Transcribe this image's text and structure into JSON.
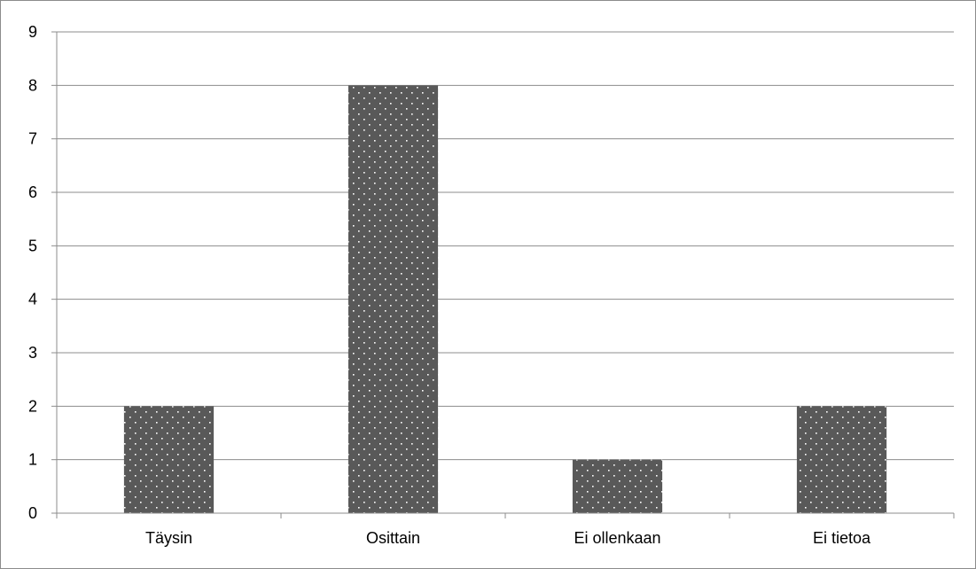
{
  "chart_data": {
    "type": "bar",
    "title": "",
    "xlabel": "",
    "ylabel": "",
    "categories": [
      "Täysin",
      "Osittain",
      "Ei ollenkaan",
      "Ei tietoa"
    ],
    "values": [
      2,
      8,
      1,
      2
    ],
    "ylim": [
      0,
      9
    ],
    "yticks": [
      0,
      1,
      2,
      3,
      4,
      5,
      6,
      7,
      8,
      9
    ],
    "grid": true,
    "legend": "none",
    "bar_color": "#595959",
    "bar_pattern": "white-dots",
    "gridline_color": "#8c8c8c"
  }
}
